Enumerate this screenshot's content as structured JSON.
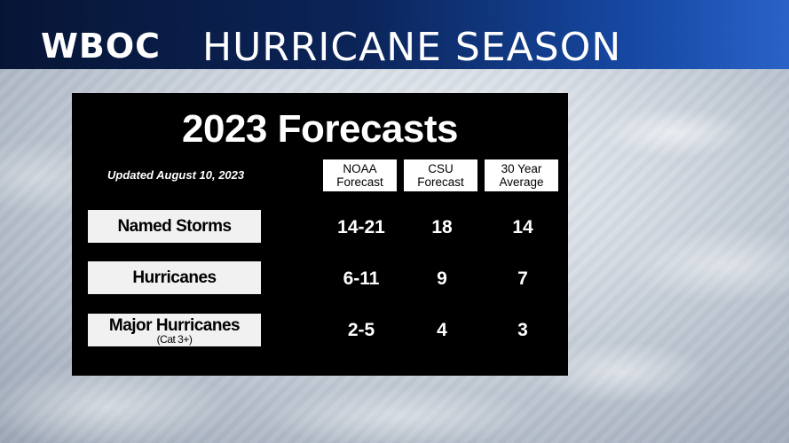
{
  "header": {
    "logo": "WBOC",
    "title": "HURRICANE SEASON"
  },
  "panel": {
    "title": "2023 Forecasts",
    "updated": "Updated August 10, 2023",
    "columns": [
      {
        "line1": "NOAA",
        "line2": "Forecast"
      },
      {
        "line1": "CSU",
        "line2": "Forecast"
      },
      {
        "line1": "30 Year",
        "line2": "Average"
      }
    ],
    "rows": [
      {
        "label": "Named Storms",
        "sub": "",
        "values": [
          "14-21",
          "18",
          "14"
        ]
      },
      {
        "label": "Hurricanes",
        "sub": "",
        "values": [
          "6-11",
          "9",
          "7"
        ]
      },
      {
        "label": "Major Hurricanes",
        "sub": "(Cat 3+)",
        "values": [
          "2-5",
          "4",
          "3"
        ]
      }
    ]
  },
  "colors": {
    "banner_dark": "#071535",
    "banner_light": "#2a62c8",
    "panel_bg": "#000000",
    "label_bg": "#f1f1f1"
  }
}
